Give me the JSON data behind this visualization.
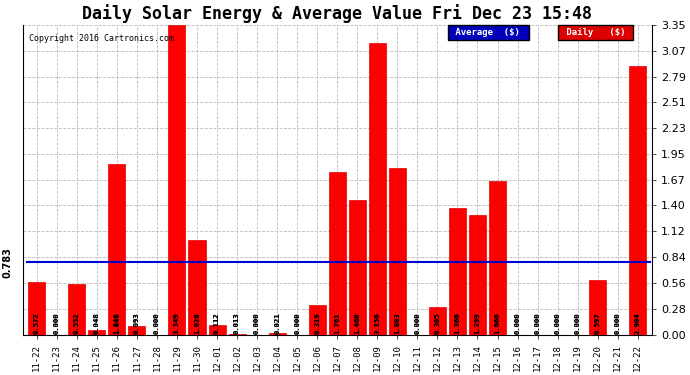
{
  "title": "Daily Solar Energy & Average Value Fri Dec 23 15:48",
  "copyright": "Copyright 2016 Cartronics.com",
  "categories": [
    "11-22",
    "11-23",
    "11-24",
    "11-25",
    "11-26",
    "11-27",
    "11-28",
    "11-29",
    "11-30",
    "12-01",
    "12-02",
    "12-03",
    "12-04",
    "12-05",
    "12-06",
    "12-07",
    "12-08",
    "12-09",
    "12-10",
    "12-11",
    "12-12",
    "12-13",
    "12-14",
    "12-15",
    "12-16",
    "12-17",
    "12-18",
    "12-19",
    "12-20",
    "12-21",
    "12-22"
  ],
  "values": [
    0.572,
    0.0,
    0.552,
    0.048,
    1.846,
    0.093,
    0.0,
    3.349,
    1.026,
    0.112,
    0.013,
    0.0,
    0.021,
    0.0,
    0.319,
    1.761,
    1.46,
    3.156,
    1.803,
    0.0,
    0.305,
    1.366,
    1.299,
    1.666,
    0.0,
    0.0,
    0.0,
    0.0,
    0.597,
    0.0,
    2.904
  ],
  "average": 0.783,
  "ylim": [
    0.0,
    3.35
  ],
  "yticks": [
    0.0,
    0.28,
    0.56,
    0.84,
    1.12,
    1.4,
    1.67,
    1.95,
    2.23,
    2.51,
    2.79,
    3.07,
    3.35
  ],
  "bar_color": "#ff0000",
  "bar_edge_color": "#dd0000",
  "avg_line_color": "#0000cc",
  "background_color": "#ffffff",
  "grid_color": "#bbbbbb",
  "title_fontsize": 12,
  "legend_avg_bg": "#0000bb",
  "legend_daily_bg": "#dd0000",
  "avg_label": "0.783"
}
